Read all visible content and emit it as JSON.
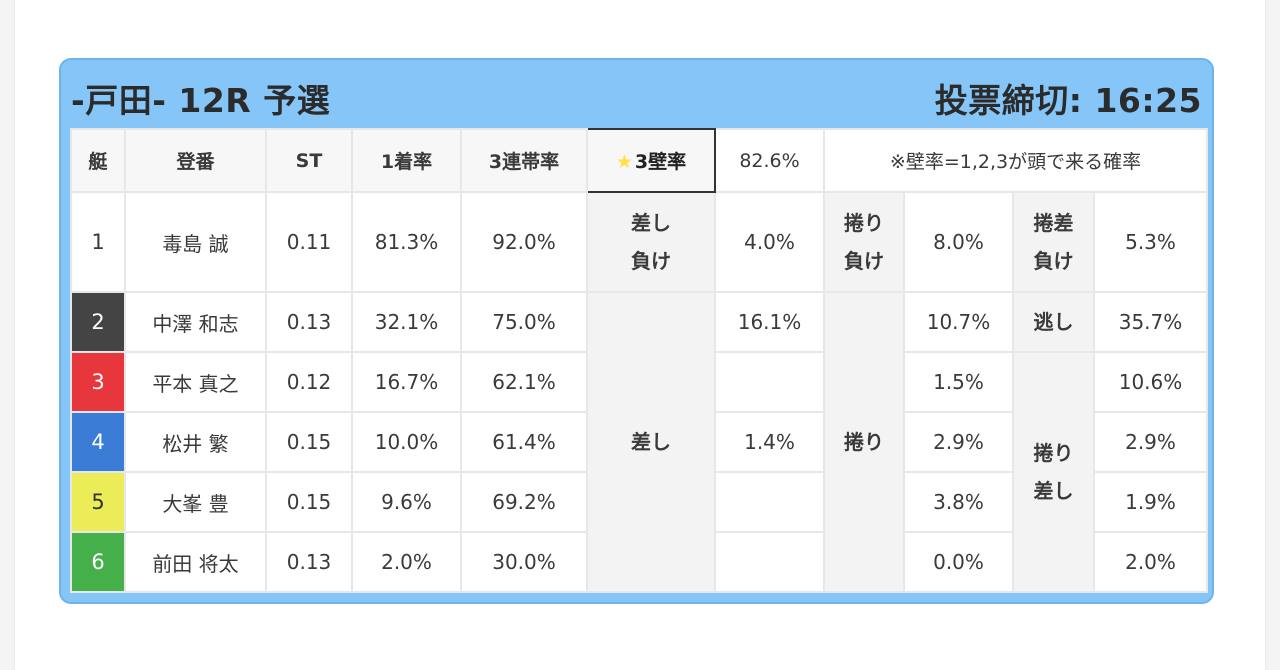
{
  "header": {
    "title": "-戸田- 12R 予選",
    "deadline": "投票締切: 16:25"
  },
  "columns": {
    "lane": "艇",
    "name": "登番",
    "st": "ST",
    "first_rate": "1着率",
    "top3_rate": "3連帯率",
    "wall_star": "★",
    "wall_label": "3壁率",
    "wall_value": "82.6%",
    "note": "※壁率=1,2,3が頭で来る確率"
  },
  "colors": {
    "card_bg": "#86c5f7",
    "wall_header": "#f0a020",
    "lane2": "#444444",
    "lane3": "#e8373c",
    "lane4": "#3a7bd5",
    "lane5": "#ecec58",
    "lane6": "#45b04a"
  },
  "rows": [
    {
      "lane": "1",
      "name": "毒島 誠",
      "st": "0.11",
      "first": "81.3%",
      "top3": "92.0%"
    },
    {
      "lane": "2",
      "name": "中澤 和志",
      "st": "0.13",
      "first": "32.1%",
      "top3": "75.0%"
    },
    {
      "lane": "3",
      "name": "平本 真之",
      "st": "0.12",
      "first": "16.7%",
      "top3": "62.1%"
    },
    {
      "lane": "4",
      "name": "松井 繁",
      "st": "0.15",
      "first": "10.0%",
      "top3": "61.4%"
    },
    {
      "lane": "5",
      "name": "大峯 豊",
      "st": "0.15",
      "first": "9.6%",
      "top3": "69.2%"
    },
    {
      "lane": "6",
      "name": "前田 将太",
      "st": "0.13",
      "first": "2.0%",
      "top3": "30.0%"
    }
  ],
  "patterns": {
    "sashi_make_l1": "差し",
    "sashi_make_l2": "負け",
    "sashi_make_val": "4.0%",
    "makuri_make_l1": "捲り",
    "makuri_make_l2": "負け",
    "makuri_make_val": "8.0%",
    "makurizashi_make_l1": "捲差",
    "makurizashi_make_l2": "負け",
    "makurizashi_make_val": "5.3%",
    "sashi": "差し",
    "sashi_val_2": "16.1%",
    "sashi_val_4": "1.4%",
    "makuri": "捲り",
    "makuri_val_2": "10.7%",
    "makuri_val_3": "1.5%",
    "makuri_val_4": "2.9%",
    "makuri_val_5": "3.8%",
    "makuri_val_6": "0.0%",
    "nige": "逃し",
    "nige_val": "35.7%",
    "makurizashi_l1": "捲り",
    "makurizashi_l2": "差し",
    "makurizashi_val_3": "10.6%",
    "makurizashi_val_4": "2.9%",
    "makurizashi_val_5": "1.9%",
    "makurizashi_val_6": "2.0%"
  }
}
